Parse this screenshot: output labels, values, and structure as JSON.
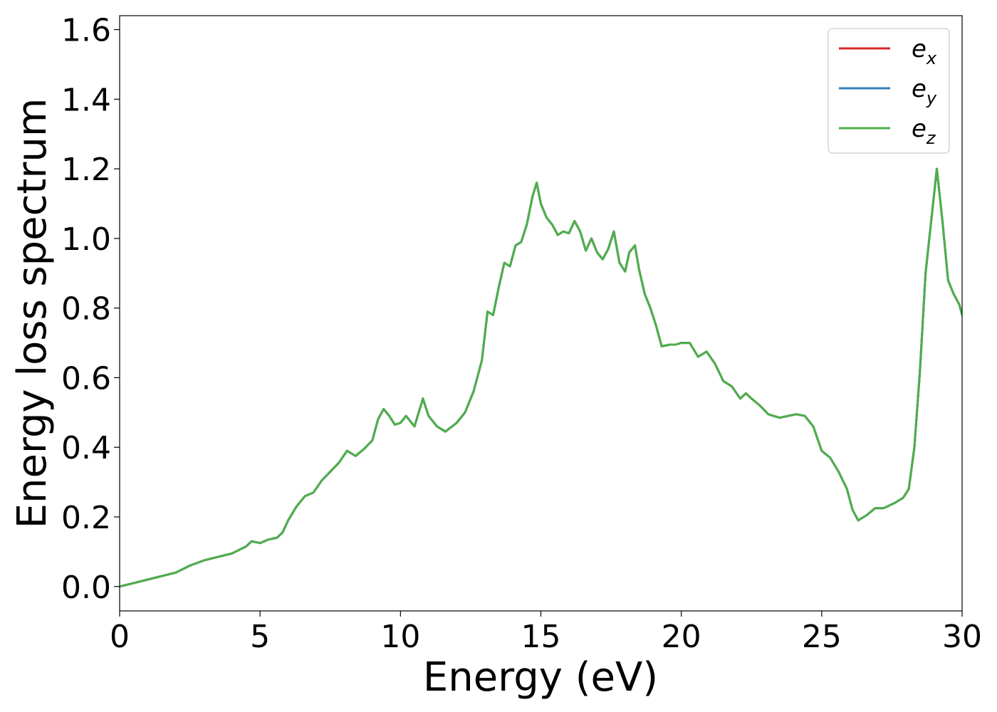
{
  "chart_data": {
    "type": "line",
    "title": "",
    "xlabel": "Energy (eV)",
    "ylabel": "Energy loss spectrum",
    "xlim": [
      0,
      30
    ],
    "ylim": [
      -0.07,
      1.64
    ],
    "grid": false,
    "legend_position": "top-right",
    "x_ticks": [
      0,
      5,
      10,
      15,
      20,
      25,
      30
    ],
    "x_tick_labels": [
      "0",
      "5",
      "10",
      "15",
      "20",
      "25",
      "30"
    ],
    "y_ticks": [
      0.0,
      0.2,
      0.4,
      0.6,
      0.8,
      1.0,
      1.2,
      1.4,
      1.6
    ],
    "y_tick_labels": [
      "0.0",
      "0.2",
      "0.4",
      "0.6",
      "0.8",
      "1.0",
      "1.2",
      "1.4",
      "1.6"
    ],
    "x": [
      0.0,
      0.5,
      1.0,
      1.5,
      2.0,
      2.5,
      3.0,
      3.5,
      4.0,
      4.5,
      4.7,
      5.0,
      5.3,
      5.6,
      5.8,
      6.0,
      6.3,
      6.6,
      6.9,
      7.2,
      7.5,
      7.8,
      8.1,
      8.4,
      8.7,
      9.0,
      9.2,
      9.4,
      9.6,
      9.8,
      10.0,
      10.2,
      10.5,
      10.8,
      11.0,
      11.3,
      11.6,
      12.0,
      12.3,
      12.6,
      12.9,
      13.1,
      13.3,
      13.5,
      13.7,
      13.9,
      14.1,
      14.3,
      14.5,
      14.7,
      14.85,
      15.0,
      15.2,
      15.4,
      15.6,
      15.8,
      16.0,
      16.2,
      16.4,
      16.6,
      16.8,
      17.0,
      17.2,
      17.4,
      17.6,
      17.8,
      18.0,
      18.15,
      18.35,
      18.5,
      18.7,
      18.9,
      19.1,
      19.3,
      19.6,
      19.8,
      20.0,
      20.3,
      20.6,
      20.9,
      21.2,
      21.5,
      21.8,
      22.1,
      22.3,
      22.5,
      22.8,
      23.1,
      23.5,
      23.8,
      24.1,
      24.4,
      24.7,
      25.0,
      25.3,
      25.6,
      25.9,
      26.1,
      26.3,
      26.6,
      26.9,
      27.2,
      27.6,
      27.9,
      28.1,
      28.3,
      28.5,
      28.7,
      28.9,
      29.1,
      29.3,
      29.5,
      29.7,
      29.9,
      30.0
    ],
    "series": [
      {
        "name": "e_x",
        "label_base": "e",
        "label_sub": "x",
        "color": "#d62728",
        "values": [
          0.0,
          0.01,
          0.02,
          0.03,
          0.04,
          0.06,
          0.075,
          0.085,
          0.095,
          0.115,
          0.13,
          0.125,
          0.135,
          0.14,
          0.155,
          0.19,
          0.23,
          0.26,
          0.27,
          0.305,
          0.33,
          0.355,
          0.39,
          0.375,
          0.395,
          0.42,
          0.48,
          0.51,
          0.49,
          0.465,
          0.47,
          0.49,
          0.46,
          0.54,
          0.49,
          0.46,
          0.445,
          0.47,
          0.5,
          0.56,
          0.65,
          0.79,
          0.78,
          0.86,
          0.93,
          0.92,
          0.98,
          0.99,
          1.04,
          1.12,
          1.16,
          1.1,
          1.06,
          1.04,
          1.01,
          1.02,
          1.015,
          1.05,
          1.02,
          0.965,
          1.0,
          0.96,
          0.94,
          0.97,
          1.02,
          0.93,
          0.905,
          0.96,
          0.98,
          0.91,
          0.84,
          0.8,
          0.75,
          0.69,
          0.695,
          0.695,
          0.7,
          0.7,
          0.66,
          0.675,
          0.64,
          0.59,
          0.575,
          0.54,
          0.555,
          0.54,
          0.52,
          0.495,
          0.485,
          0.49,
          0.495,
          0.49,
          0.46,
          0.39,
          0.37,
          0.33,
          0.28,
          0.22,
          0.19,
          0.205,
          0.225,
          0.225,
          0.24,
          0.255,
          0.28,
          0.4,
          0.62,
          0.9,
          1.05,
          1.2,
          1.05,
          0.88,
          0.84,
          0.81,
          0.78
        ]
      },
      {
        "name": "e_y",
        "label_base": "e",
        "label_sub": "y",
        "color": "#377eb8",
        "values": [
          0.0,
          0.01,
          0.02,
          0.03,
          0.04,
          0.06,
          0.075,
          0.085,
          0.095,
          0.115,
          0.13,
          0.125,
          0.135,
          0.14,
          0.155,
          0.19,
          0.23,
          0.26,
          0.27,
          0.305,
          0.33,
          0.355,
          0.39,
          0.375,
          0.395,
          0.42,
          0.48,
          0.51,
          0.49,
          0.465,
          0.47,
          0.49,
          0.46,
          0.54,
          0.49,
          0.46,
          0.445,
          0.47,
          0.5,
          0.56,
          0.65,
          0.79,
          0.78,
          0.86,
          0.93,
          0.92,
          0.98,
          0.99,
          1.04,
          1.12,
          1.16,
          1.1,
          1.06,
          1.04,
          1.01,
          1.02,
          1.015,
          1.05,
          1.02,
          0.965,
          1.0,
          0.96,
          0.94,
          0.97,
          1.02,
          0.93,
          0.905,
          0.96,
          0.98,
          0.91,
          0.84,
          0.8,
          0.75,
          0.69,
          0.695,
          0.695,
          0.7,
          0.7,
          0.66,
          0.675,
          0.64,
          0.59,
          0.575,
          0.54,
          0.555,
          0.54,
          0.52,
          0.495,
          0.485,
          0.49,
          0.495,
          0.49,
          0.46,
          0.39,
          0.37,
          0.33,
          0.28,
          0.22,
          0.19,
          0.205,
          0.225,
          0.225,
          0.24,
          0.255,
          0.28,
          0.4,
          0.62,
          0.9,
          1.05,
          1.2,
          1.05,
          0.88,
          0.84,
          0.81,
          0.78
        ]
      },
      {
        "name": "e_z",
        "label_base": "e",
        "label_sub": "z",
        "color": "#4daf4a",
        "values": [
          0.0,
          0.01,
          0.02,
          0.03,
          0.04,
          0.06,
          0.075,
          0.085,
          0.095,
          0.115,
          0.13,
          0.125,
          0.135,
          0.14,
          0.155,
          0.19,
          0.23,
          0.26,
          0.27,
          0.305,
          0.33,
          0.355,
          0.39,
          0.375,
          0.395,
          0.42,
          0.48,
          0.51,
          0.49,
          0.465,
          0.47,
          0.49,
          0.46,
          0.54,
          0.49,
          0.46,
          0.445,
          0.47,
          0.5,
          0.56,
          0.65,
          0.79,
          0.78,
          0.86,
          0.93,
          0.92,
          0.98,
          0.99,
          1.04,
          1.12,
          1.16,
          1.1,
          1.06,
          1.04,
          1.01,
          1.02,
          1.015,
          1.05,
          1.02,
          0.965,
          1.0,
          0.96,
          0.94,
          0.97,
          1.02,
          0.93,
          0.905,
          0.96,
          0.98,
          0.91,
          0.84,
          0.8,
          0.75,
          0.69,
          0.695,
          0.695,
          0.7,
          0.7,
          0.66,
          0.675,
          0.64,
          0.59,
          0.575,
          0.54,
          0.555,
          0.54,
          0.52,
          0.495,
          0.485,
          0.49,
          0.495,
          0.49,
          0.46,
          0.39,
          0.37,
          0.33,
          0.28,
          0.22,
          0.19,
          0.205,
          0.225,
          0.225,
          0.24,
          0.255,
          0.28,
          0.4,
          0.62,
          0.9,
          1.05,
          1.2,
          1.05,
          0.88,
          0.84,
          0.81,
          0.78
        ]
      }
    ]
  }
}
